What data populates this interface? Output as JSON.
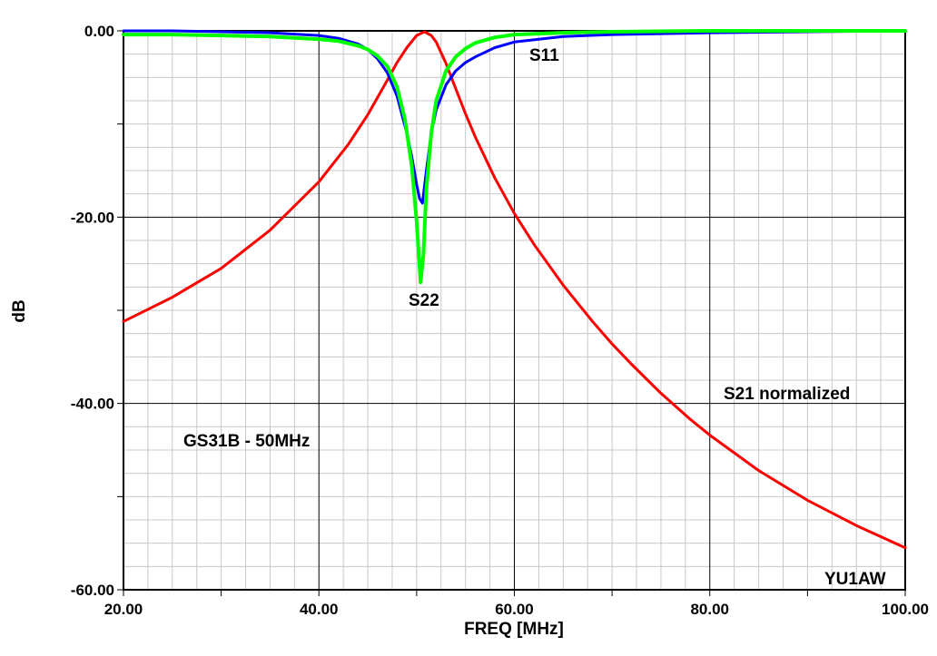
{
  "chart_data": {
    "type": "line",
    "xlabel": "FREQ [MHz]",
    "ylabel": "dB",
    "xlim": [
      20,
      100
    ],
    "ylim": [
      -60,
      0
    ],
    "grid": true,
    "x_ticks": [
      20,
      40,
      60,
      80,
      100
    ],
    "x_tick_labels": [
      "20.00",
      "40.00",
      "60.00",
      "80.00",
      "100.00"
    ],
    "y_ticks": [
      0,
      -20,
      -40,
      -60
    ],
    "y_tick_labels": [
      "0.00",
      "-20.00",
      "-40.00",
      "-60.00"
    ],
    "annotations": {
      "s11": "S11",
      "s22": "S22",
      "s21": "S21 normalized",
      "subtitle": "GS31B - 50MHz",
      "credit": "YU1AW"
    },
    "series": [
      {
        "name": "S21 normalized",
        "color": "#ff0000",
        "x": [
          20,
          25,
          30,
          35,
          40,
          43,
          45,
          47,
          48,
          49,
          50,
          50.8,
          51.5,
          52,
          53,
          54,
          55,
          56,
          58,
          60,
          62,
          65,
          68,
          70,
          72,
          75,
          78,
          80,
          85,
          90,
          95,
          100
        ],
        "y": [
          -31.2,
          -28.6,
          -25.5,
          -21.4,
          -16.2,
          -12.2,
          -9,
          -5.3,
          -3.4,
          -1.8,
          -0.5,
          -0.1,
          -0.5,
          -1.2,
          -3.5,
          -6.2,
          -8.9,
          -11.4,
          -15.8,
          -19.6,
          -22.9,
          -27.3,
          -31.2,
          -33.6,
          -35.8,
          -38.9,
          -41.7,
          -43.4,
          -47.2,
          -50.4,
          -53.1,
          -55.5
        ]
      },
      {
        "name": "S11",
        "color": "#0000ff",
        "x": [
          20,
          25,
          30,
          35,
          40,
          42,
          44,
          45,
          46,
          47,
          48,
          49,
          49.5,
          50,
          50.3,
          50.6,
          51,
          51.5,
          52,
          53,
          54,
          55,
          56,
          58,
          60,
          65,
          70,
          80,
          90,
          100
        ],
        "y": [
          0,
          0,
          -0.1,
          -0.2,
          -0.5,
          -0.8,
          -1.4,
          -2,
          -3,
          -4.5,
          -7,
          -11,
          -13.5,
          -16.5,
          -18,
          -18.5,
          -15,
          -11,
          -8.5,
          -5.8,
          -4.3,
          -3.4,
          -2.8,
          -1.8,
          -1.2,
          -0.6,
          -0.4,
          -0.2,
          -0.1,
          0
        ]
      },
      {
        "name": "S22",
        "color": "#00ff00",
        "x": [
          20,
          25,
          30,
          35,
          40,
          42,
          44,
          45,
          46,
          47,
          48,
          48.8,
          49.5,
          50,
          50.4,
          50.7,
          51,
          51.5,
          52,
          53,
          54,
          55,
          56,
          58,
          60,
          65,
          70,
          80,
          90,
          100
        ],
        "y": [
          -0.4,
          -0.4,
          -0.5,
          -0.6,
          -0.9,
          -1.1,
          -1.6,
          -2,
          -2.7,
          -3.8,
          -6,
          -9.5,
          -14.5,
          -20.5,
          -27,
          -24,
          -17,
          -11,
          -7.5,
          -4.3,
          -2.8,
          -1.9,
          -1.3,
          -0.7,
          -0.4,
          -0.2,
          -0.1,
          0,
          0,
          0
        ]
      }
    ]
  }
}
